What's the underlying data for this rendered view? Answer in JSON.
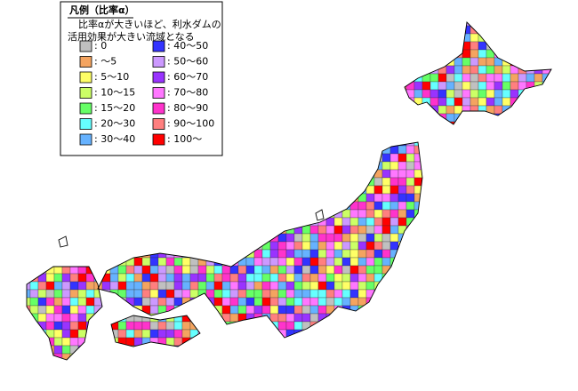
{
  "legend": {
    "title": "凡例（比率α）",
    "description": [
      "比率αが大きいほど、利水ダムの",
      "活用効果が大きい流域となる"
    ],
    "items": [
      {
        "label": ": 0",
        "color": "#c0c0c0"
      },
      {
        "label": ": ～5",
        "color": "#f4a460"
      },
      {
        "label": ": 5～10",
        "color": "#ffff66"
      },
      {
        "label": ": 10～15",
        "color": "#ccff66"
      },
      {
        "label": ": 15～20",
        "color": "#66ff66"
      },
      {
        "label": ": 20～30",
        "color": "#66ffff"
      },
      {
        "label": ": 30～40",
        "color": "#66b2ff"
      },
      {
        "label": ": 40～50",
        "color": "#3333ff"
      },
      {
        "label": ": 50～60",
        "color": "#cc99ff"
      },
      {
        "label": ": 60～70",
        "color": "#9933ff"
      },
      {
        "label": ": 70～80",
        "color": "#ff77ff"
      },
      {
        "label": ": 80～90",
        "color": "#ff33cc"
      },
      {
        "label": ": 90～100",
        "color": "#ff7f7f"
      },
      {
        "label": ": 100～",
        "color": "#ff0000"
      }
    ]
  }
}
